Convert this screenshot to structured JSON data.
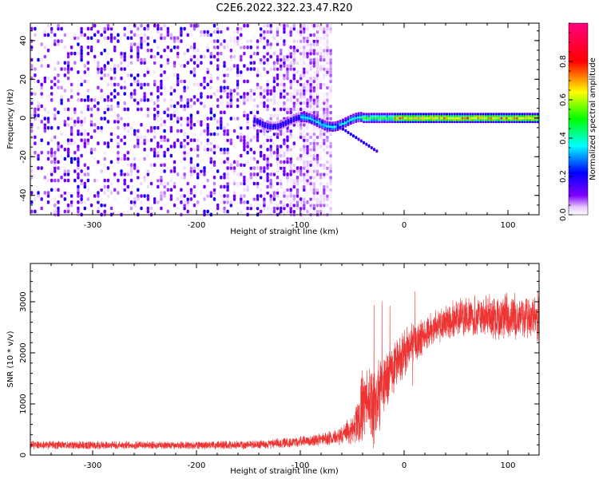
{
  "figure_title": "C2E6.2022.322.23.47.R20",
  "chart_data": [
    {
      "type": "heatmap",
      "xlabel": "Height of straight line (km)",
      "ylabel": "Frequency (Hz)",
      "xlim": [
        -360,
        130
      ],
      "ylim": [
        -50,
        49
      ],
      "x_ticks": [
        -300,
        -200,
        -100,
        0,
        100
      ],
      "y_ticks": [
        -40,
        -20,
        0,
        20,
        40
      ],
      "colorbar": {
        "label": "Normalized spectral amplitude",
        "range": [
          0,
          1
        ],
        "ticks": [
          0.0,
          0.2,
          0.4,
          0.6,
          0.8
        ],
        "colormap": [
          "#ffffff",
          "#8000ff",
          "#0000ff",
          "#00ffff",
          "#00ff00",
          "#ffff00",
          "#ff0000",
          "#ff0080"
        ]
      },
      "features": {
        "noise_region_x": [
          -360,
          -80
        ],
        "line_frequency_hz": 0,
        "line_start_x": -145
      }
    },
    {
      "type": "line",
      "xlabel": "Height of straight line (km)",
      "ylabel": "SNR (10 * v/v)",
      "xlim": [
        -360,
        130
      ],
      "ylim": [
        0,
        3750
      ],
      "x_ticks": [
        -300,
        -200,
        -100,
        0,
        100
      ],
      "y_ticks": [
        0,
        1000,
        2000,
        3000
      ],
      "line_color": "#ee3333",
      "series": [
        {
          "x": [
            -360,
            -300,
            -250,
            -200,
            -150,
            -120,
            -100,
            -80,
            -60,
            -50,
            -45,
            -40,
            -35,
            -30,
            -25,
            -20,
            -15,
            -10,
            -5,
            0,
            5,
            10,
            15,
            20,
            30,
            40,
            50,
            60,
            70,
            80,
            90,
            100,
            110,
            120,
            130
          ],
          "values": [
            200,
            190,
            190,
            190,
            200,
            230,
            260,
            300,
            380,
            500,
            650,
            900,
            1100,
            900,
            1200,
            1400,
            1500,
            1700,
            1900,
            2000,
            2100,
            2200,
            2300,
            2400,
            2500,
            2600,
            2650,
            2700,
            2700,
            2750,
            2700,
            2750,
            2700,
            2700,
            2700
          ],
          "noise_amplitude": [
            90,
            90,
            90,
            90,
            90,
            110,
            120,
            140,
            200,
            350,
            500,
            800,
            600,
            900,
            900,
            700,
            650,
            550,
            550,
            500,
            450,
            450,
            450,
            400,
            380,
            380,
            400,
            420,
            450,
            450,
            480,
            520,
            500,
            500,
            500
          ]
        }
      ]
    }
  ]
}
